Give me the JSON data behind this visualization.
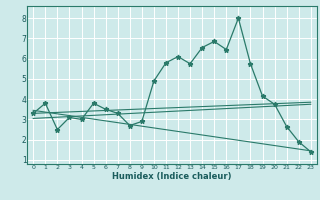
{
  "xlabel": "Humidex (Indice chaleur)",
  "bg_color": "#ceeaea",
  "grid_color": "#ffffff",
  "line_color": "#2a7a6a",
  "xlim": [
    -0.5,
    23.5
  ],
  "ylim": [
    0.8,
    8.6
  ],
  "xticks": [
    0,
    1,
    2,
    3,
    4,
    5,
    6,
    7,
    8,
    9,
    10,
    11,
    12,
    13,
    14,
    15,
    16,
    17,
    18,
    19,
    20,
    21,
    22,
    23
  ],
  "yticks": [
    1,
    2,
    3,
    4,
    5,
    6,
    7,
    8
  ],
  "line1_x": [
    0,
    1,
    2,
    3,
    4,
    5,
    6,
    7,
    8,
    9,
    10,
    11,
    12,
    13,
    14,
    15,
    16,
    17,
    18,
    19,
    20,
    21,
    22,
    23
  ],
  "line1_y": [
    3.3,
    3.8,
    2.5,
    3.1,
    3.0,
    3.8,
    3.5,
    3.3,
    2.7,
    2.9,
    4.9,
    5.8,
    6.1,
    5.75,
    6.55,
    6.85,
    6.45,
    8.0,
    5.75,
    4.15,
    3.75,
    2.65,
    1.9,
    1.4
  ],
  "line2_x": [
    0,
    23
  ],
  "line2_y": [
    3.3,
    3.85
  ],
  "line3_x": [
    0,
    23
  ],
  "line3_y": [
    3.05,
    3.75
  ],
  "line4_x": [
    0,
    23
  ],
  "line4_y": [
    3.45,
    1.45
  ]
}
